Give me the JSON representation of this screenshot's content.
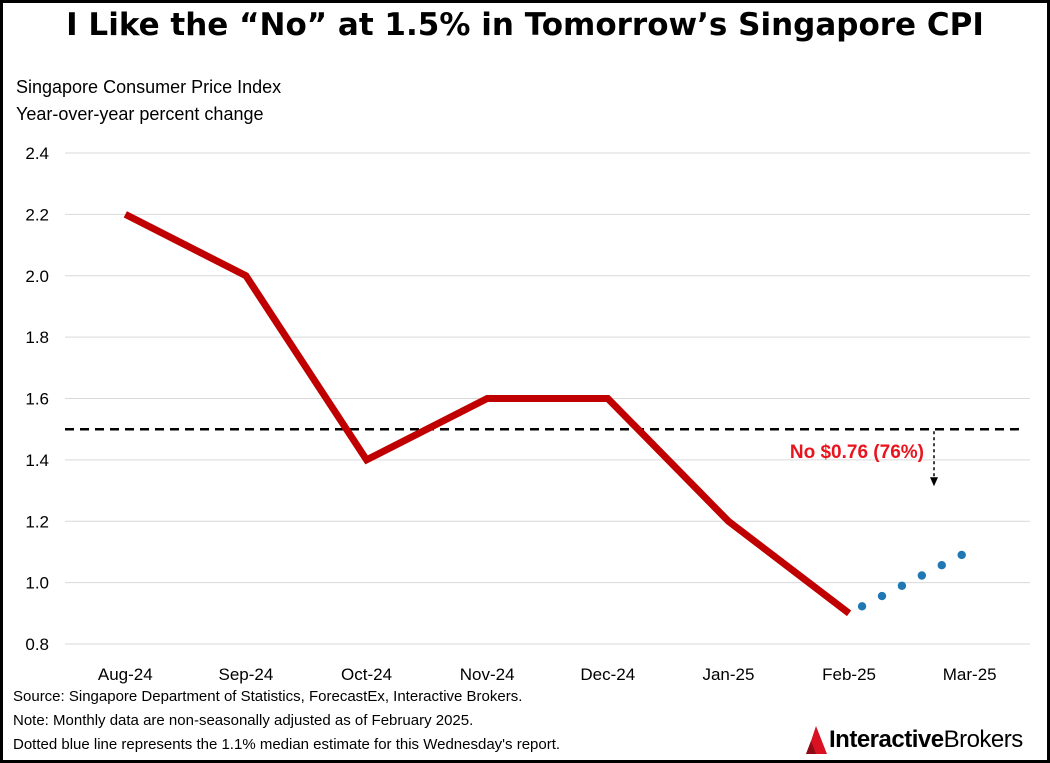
{
  "title": "I Like the “No” at 1.5% in Tomorrow’s Singapore CPI",
  "subtitle_line1": "Singapore Consumer Price Index",
  "subtitle_line2": "Year-over-year percent change",
  "chart_data": {
    "type": "line",
    "categories": [
      "Aug-24",
      "Sep-24",
      "Oct-24",
      "Nov-24",
      "Dec-24",
      "Jan-25",
      "Feb-25",
      "Mar-25"
    ],
    "series": [
      {
        "name": "Singapore CPI YoY",
        "values": [
          2.2,
          2.0,
          1.4,
          1.6,
          1.6,
          1.2,
          0.9,
          null
        ],
        "style": "solid",
        "color": "#C00000"
      },
      {
        "name": "Median estimate",
        "from_category": "Feb-25",
        "to_category": "Mar-25",
        "from_value": 0.9,
        "to_value": 1.1,
        "style": "dotted",
        "color": "#1F77B4"
      }
    ],
    "yticks": [
      0.8,
      1.0,
      1.2,
      1.4,
      1.6,
      1.8,
      2.0,
      2.2,
      2.4
    ],
    "ylim": [
      0.8,
      2.4
    ],
    "grid": true,
    "reference_line": {
      "value": 1.5,
      "style": "dashed",
      "color": "#000000"
    },
    "annotation": {
      "text": "No $0.76 (76%)",
      "color": "#E8141E",
      "arrow": "down"
    }
  },
  "notes": {
    "source": "Source: Singapore Department of Statistics, ForecastEx, Interactive Brokers.",
    "monthly": "Note: Monthly data are non-seasonally adjusted as of February 2025.",
    "dotted": "Dotted blue line represents the 1.1% median estimate for this Wednesday's report."
  },
  "logo": {
    "part_a": "Interactive",
    "part_b": "Brokers",
    "color": "#D81222"
  }
}
